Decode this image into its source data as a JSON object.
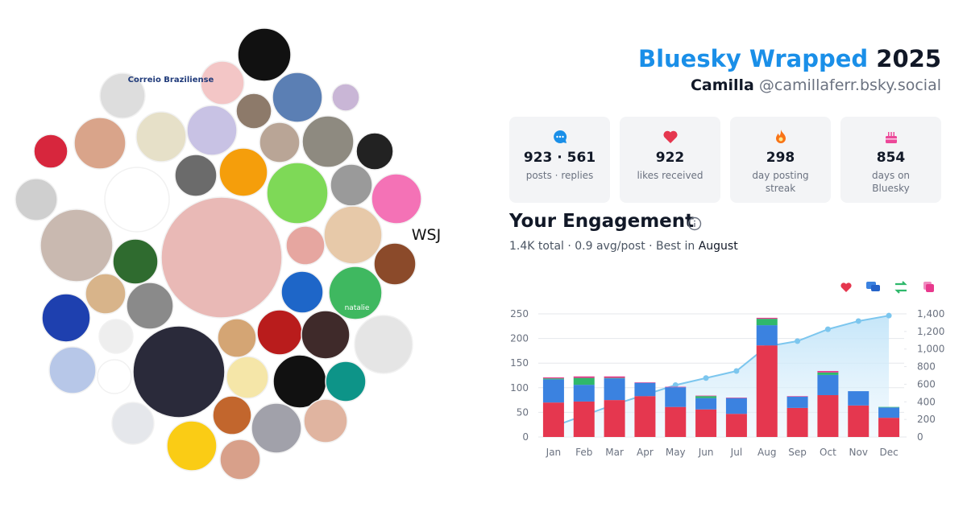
{
  "header": {
    "title": "Bluesky Wrapped",
    "year": "2025",
    "name": "Camilla",
    "handle": "@camillaferr.bsky.social"
  },
  "stats": [
    {
      "value": "923 · 561",
      "label": "posts · replies"
    },
    {
      "value": "922",
      "label": "likes received"
    },
    {
      "value": "298",
      "label": "day posting streak"
    },
    {
      "value": "854",
      "label": "days on Bluesky"
    }
  ],
  "engagement": {
    "title": "Your Engagement",
    "summary": "1.4K total · 0.9 avg/post · Best in",
    "best_month": "August"
  },
  "logos": [
    "Correio Braziliense",
    "WSJ",
    "natalie"
  ],
  "chart_data": {
    "type": "stacked_bar_line",
    "categories": [
      "Jan",
      "Feb",
      "Mar",
      "Apr",
      "May",
      "Jun",
      "Jul",
      "Aug",
      "Sep",
      "Oct",
      "Nov",
      "Dec"
    ],
    "series": [
      {
        "color": "#e5374f",
        "values": [
          70,
          72,
          75,
          83,
          61,
          56,
          47,
          186,
          59,
          85,
          64,
          39
        ]
      },
      {
        "color": "#3b82e0",
        "values": [
          47,
          34,
          44,
          27,
          40,
          23,
          32,
          41,
          23,
          41,
          29,
          21
        ]
      },
      {
        "color": "#2fb86b",
        "values": [
          2,
          14,
          1,
          0,
          0,
          4,
          0,
          13,
          0,
          5,
          0,
          1
        ]
      },
      {
        "color": "#e8398d",
        "values": [
          2,
          3,
          3,
          1,
          1,
          1,
          1,
          2,
          1,
          3,
          0,
          0
        ]
      },
      {
        "type": "line",
        "axis": "y2",
        "color": "#7cc6ee",
        "values": [
          121,
          245,
          370,
          480,
          590,
          670,
          750,
          1030,
          1090,
          1225,
          1318,
          1380
        ]
      }
    ],
    "ylim": [
      0,
      250
    ],
    "yticks": [
      0,
      50,
      100,
      150,
      200,
      250
    ],
    "y2lim": [
      0,
      1400
    ],
    "y2ticks": [
      0,
      200,
      400,
      600,
      800,
      {
        "value": 1000,
        "label": "1,000"
      },
      {
        "value": 1200,
        "label": "1,200"
      },
      {
        "value": 1400,
        "label": "1,400"
      }
    ],
    "grid": true
  }
}
